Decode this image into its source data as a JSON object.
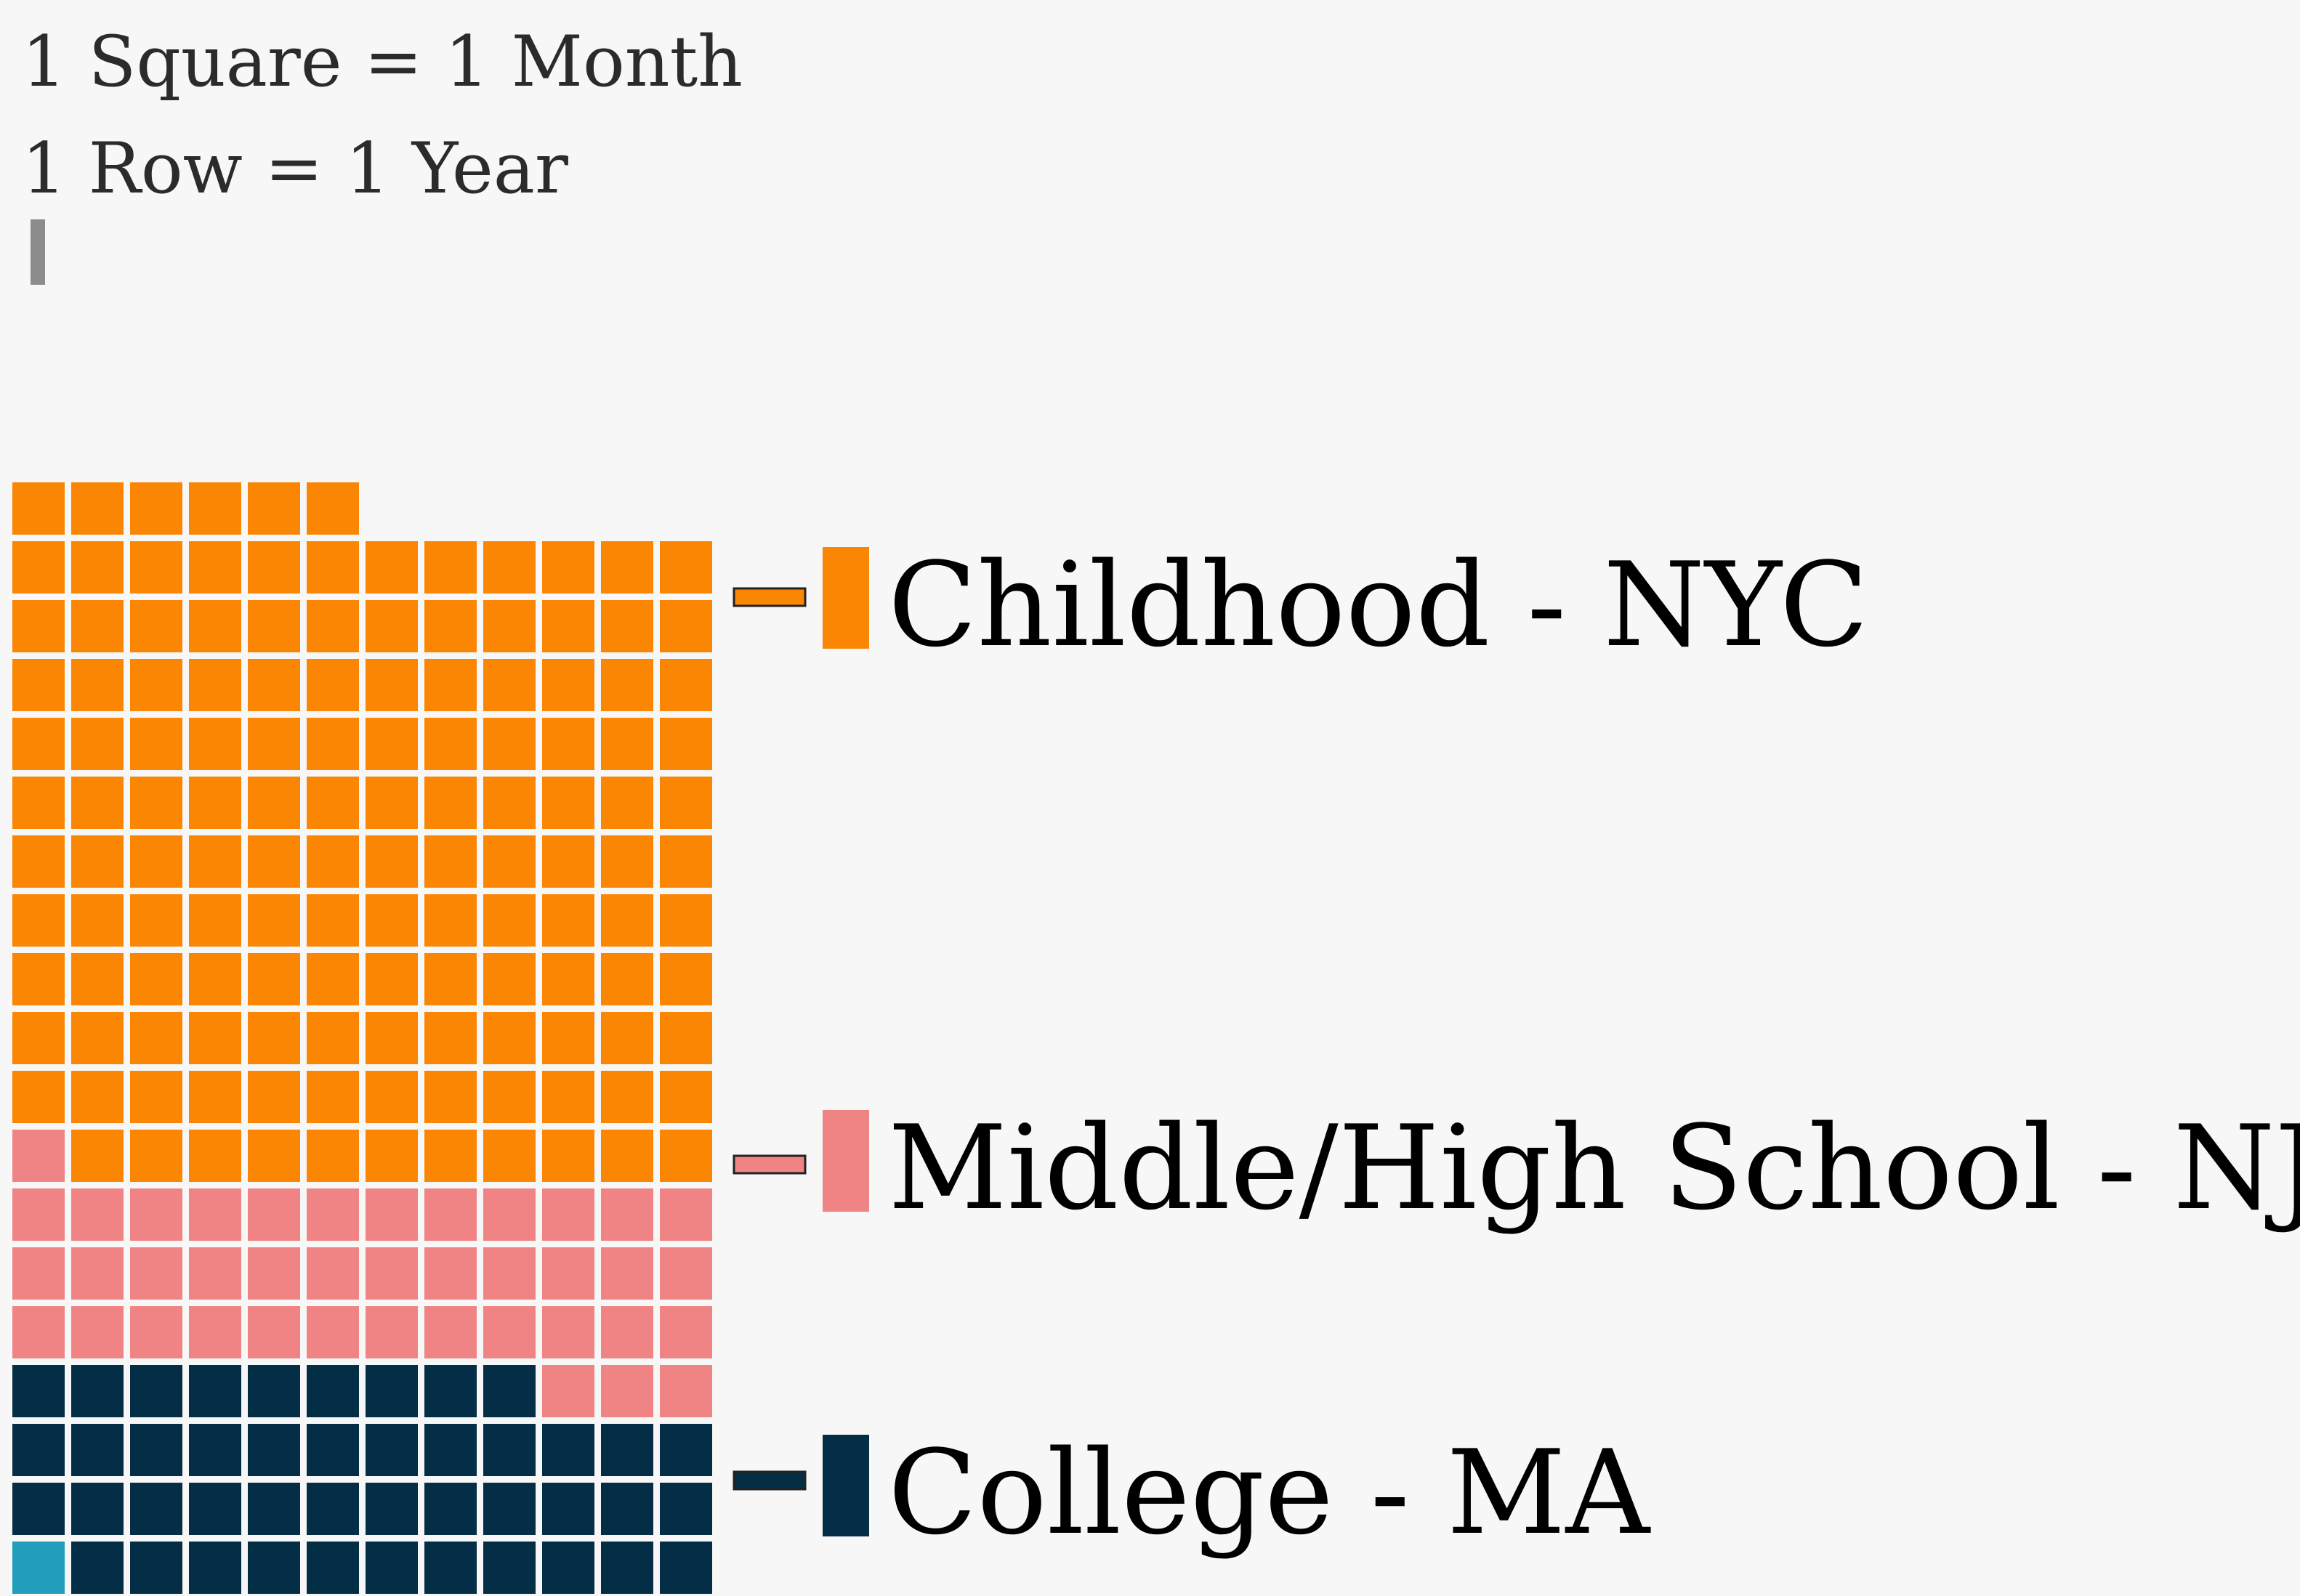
{
  "chart_data": {
    "type": "waffle",
    "notes": [
      "1 Square = 1 Month",
      "1 Row = 1 Year"
    ],
    "columns": 12,
    "row_order": "bottom-up",
    "series": [
      {
        "name": "College - MA",
        "value": 44,
        "color": "#042e45"
      },
      {
        "name": "Middle/High School - NJ",
        "value": 40,
        "color": "#f08484"
      },
      {
        "name": "Childhood - NYC",
        "value": 137,
        "color": "#fb8604"
      }
    ],
    "extra_square": {
      "value": 1,
      "color": "#219ebc"
    },
    "accent_tick_color": "#8c8c8c"
  }
}
